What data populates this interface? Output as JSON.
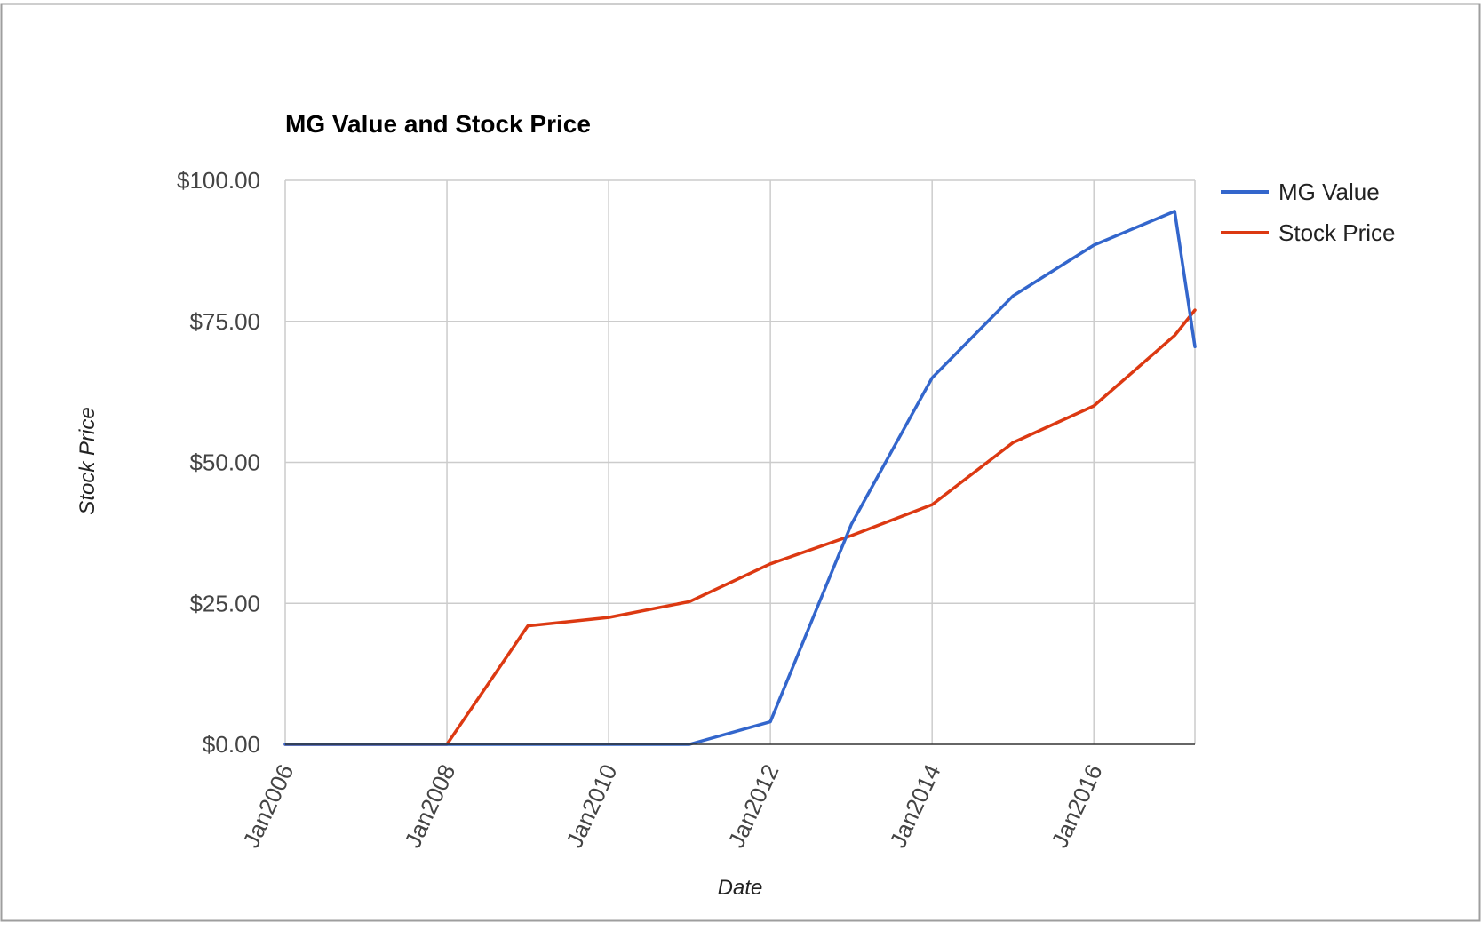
{
  "chart_data": {
    "type": "line",
    "title": "MG Value and Stock Price",
    "xlabel": "Date",
    "ylabel": "Stock Price",
    "ylim": [
      0,
      100
    ],
    "xlim": [
      "2006-01",
      "2017-04"
    ],
    "x_ticks": [
      "Jan2006",
      "Jan2008",
      "Jan2010",
      "Jan2012",
      "Jan2014",
      "Jan2016"
    ],
    "y_ticks": [
      "$0.00",
      "$25.00",
      "$50.00",
      "$75.00",
      "$100.00"
    ],
    "grid": true,
    "legend_position": "right",
    "series": [
      {
        "name": "MG Value",
        "color": "#3366cc",
        "points": [
          {
            "x": "2006-01",
            "y": 0
          },
          {
            "x": "2007-01",
            "y": 0
          },
          {
            "x": "2008-01",
            "y": 0
          },
          {
            "x": "2009-01",
            "y": 0
          },
          {
            "x": "2010-01",
            "y": 0
          },
          {
            "x": "2011-01",
            "y": 0
          },
          {
            "x": "2012-01",
            "y": 4
          },
          {
            "x": "2013-01",
            "y": 39
          },
          {
            "x": "2014-01",
            "y": 65
          },
          {
            "x": "2015-01",
            "y": 79.5
          },
          {
            "x": "2016-01",
            "y": 88.5
          },
          {
            "x": "2017-01",
            "y": 94.5
          },
          {
            "x": "2017-04",
            "y": 70.5
          }
        ]
      },
      {
        "name": "Stock Price",
        "color": "#dc3912",
        "points": [
          {
            "x": "2006-01",
            "y": 0
          },
          {
            "x": "2007-01",
            "y": 0
          },
          {
            "x": "2008-01",
            "y": 0
          },
          {
            "x": "2009-01",
            "y": 21
          },
          {
            "x": "2010-01",
            "y": 22.5
          },
          {
            "x": "2011-01",
            "y": 25.3
          },
          {
            "x": "2012-01",
            "y": 32
          },
          {
            "x": "2013-01",
            "y": 37
          },
          {
            "x": "2014-01",
            "y": 42.5
          },
          {
            "x": "2015-01",
            "y": 53.5
          },
          {
            "x": "2016-01",
            "y": 60
          },
          {
            "x": "2017-01",
            "y": 72.5
          },
          {
            "x": "2017-04",
            "y": 77
          }
        ]
      }
    ]
  }
}
